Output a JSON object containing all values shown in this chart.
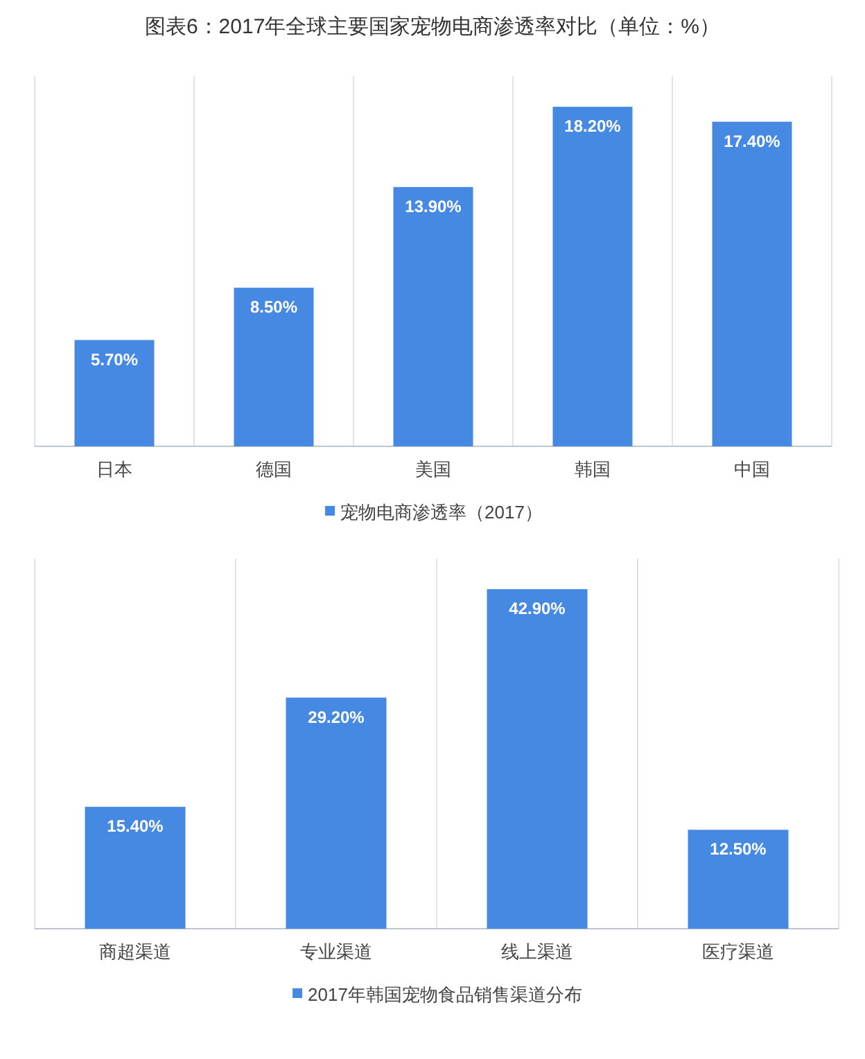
{
  "chart_data": [
    {
      "type": "bar",
      "title": "图表6：2017年全球主要国家宠物电商渗透率对比（单位：%）",
      "categories": [
        "日本",
        "德国",
        "美国",
        "韩国",
        "中国"
      ],
      "series": [
        {
          "name": "宠物电商渗透率（2017）",
          "color": "#4689e2",
          "values": [
            5.7,
            8.5,
            13.9,
            18.2,
            17.4
          ],
          "value_labels": [
            "5.70%",
            "8.50%",
            "13.90%",
            "18.20%",
            "17.40%"
          ]
        }
      ],
      "legend": "bottom"
    },
    {
      "type": "bar",
      "categories": [
        "商超渠道",
        "专业渠道",
        "线上渠道",
        "医疗渠道"
      ],
      "series": [
        {
          "name": "2017年韩国宠物食品销售渠道分布",
          "color": "#4689e2",
          "values": [
            15.4,
            29.2,
            42.9,
            12.5
          ],
          "value_labels": [
            "15.40%",
            "29.20%",
            "42.90%",
            "12.50%"
          ]
        }
      ],
      "legend": "bottom"
    }
  ]
}
